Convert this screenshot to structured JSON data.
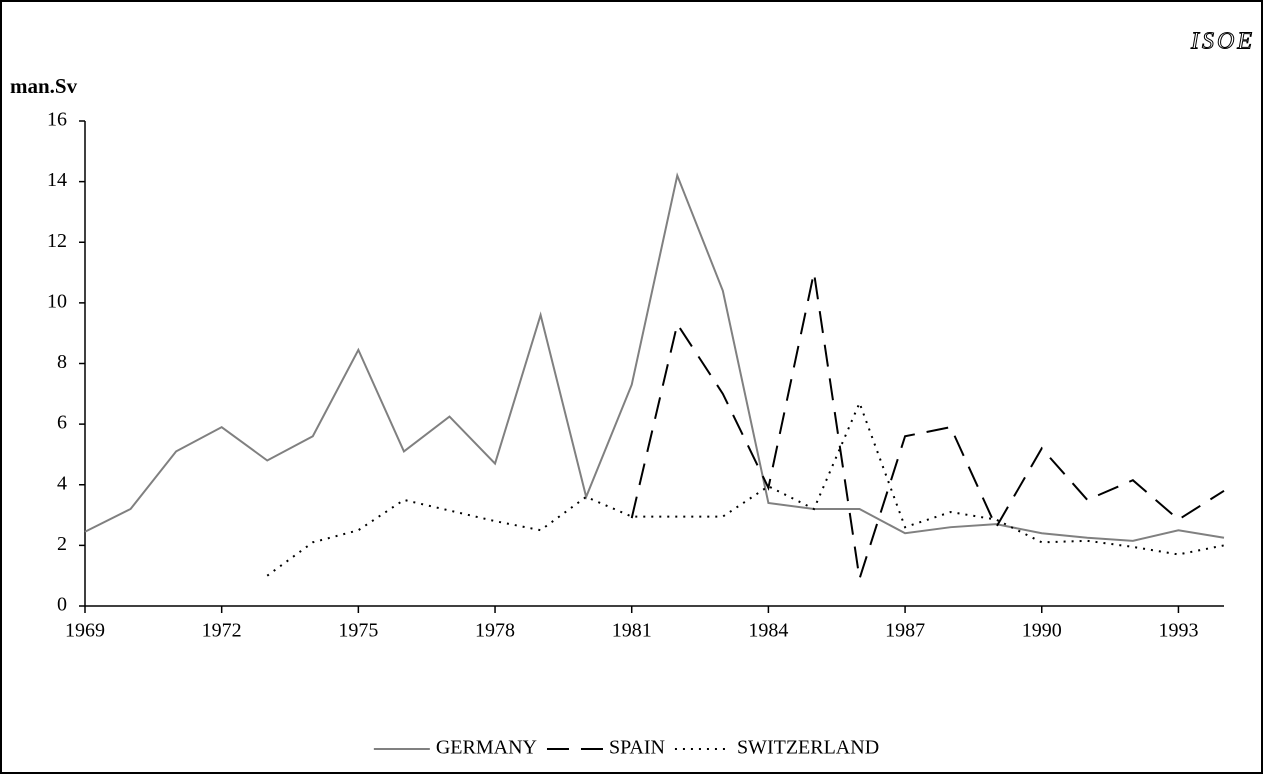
{
  "chart_data": {
    "type": "line",
    "brand": "ISOE",
    "ylabel": "man.Sv",
    "x": [
      1969,
      1970,
      1971,
      1972,
      1973,
      1974,
      1975,
      1976,
      1977,
      1978,
      1979,
      1980,
      1981,
      1982,
      1983,
      1984,
      1985,
      1986,
      1987,
      1988,
      1989,
      1990,
      1991,
      1992,
      1993,
      1994
    ],
    "series": [
      {
        "name": "GERMANY",
        "color": "#808080",
        "dash": "solid",
        "values": [
          2.45,
          3.2,
          5.1,
          5.9,
          4.8,
          5.6,
          8.45,
          5.1,
          6.25,
          4.7,
          9.6,
          3.6,
          7.3,
          14.2,
          10.4,
          3.4,
          3.2,
          3.2,
          2.4,
          2.6,
          2.7,
          2.4,
          2.25,
          2.15,
          2.5,
          2.25
        ]
      },
      {
        "name": "SPAIN",
        "color": "#000000",
        "dash": "dashed",
        "values": [
          null,
          null,
          null,
          null,
          null,
          null,
          null,
          null,
          null,
          null,
          null,
          null,
          2.9,
          9.3,
          7.0,
          3.9,
          11.0,
          0.9,
          5.6,
          5.9,
          2.6,
          5.2,
          3.5,
          4.15,
          2.85,
          3.8
        ]
      },
      {
        "name": "SWITZERLAND",
        "color": "#000000",
        "dash": "dotted",
        "values": [
          null,
          null,
          null,
          null,
          1.0,
          2.1,
          2.5,
          3.5,
          3.15,
          2.8,
          2.5,
          3.6,
          2.95,
          2.95,
          2.95,
          3.95,
          3.2,
          6.7,
          2.6,
          3.1,
          2.85,
          2.1,
          2.15,
          1.95,
          1.7,
          2.0
        ]
      }
    ],
    "xlim": [
      1969,
      1994
    ],
    "xticks": [
      1969,
      1972,
      1975,
      1978,
      1981,
      1984,
      1987,
      1990,
      1993
    ],
    "ylim": [
      0,
      16
    ],
    "yticks": [
      0,
      2,
      4,
      6,
      8,
      10,
      12,
      14,
      16
    ],
    "legend": "bottom"
  }
}
